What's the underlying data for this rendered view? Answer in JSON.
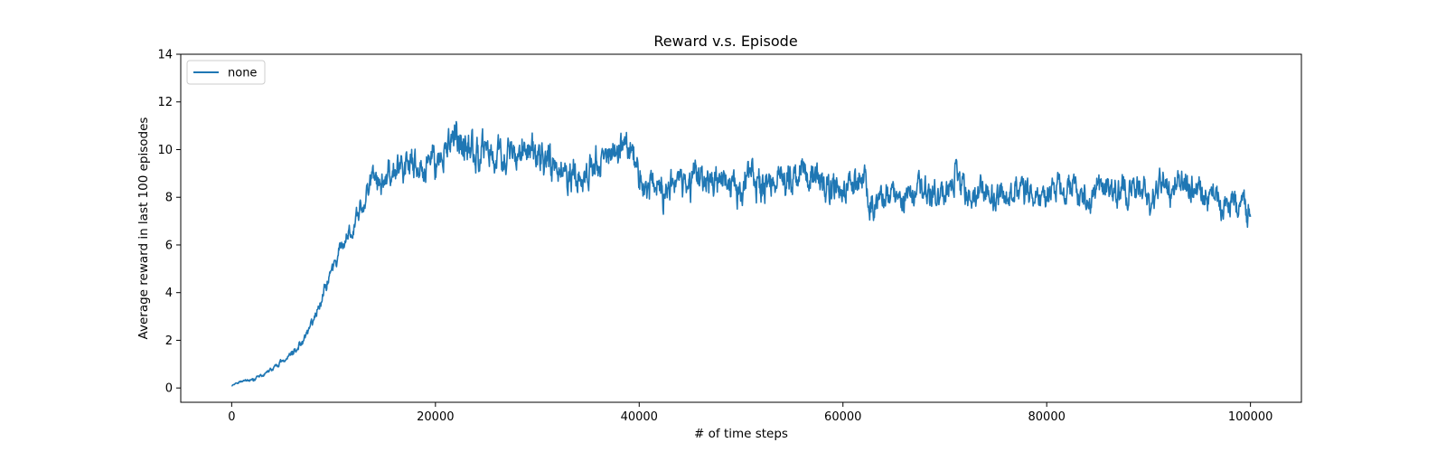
{
  "chart_data": {
    "type": "line",
    "title": "Reward v.s. Episode",
    "xlabel": "# of time steps",
    "ylabel": "Average reward in last 100 episodes",
    "xlim": [
      -5000,
      105000
    ],
    "ylim": [
      -0.6,
      14
    ],
    "xticks": [
      0,
      20000,
      40000,
      60000,
      80000,
      100000
    ],
    "xtick_labels": [
      "0",
      "20000",
      "40000",
      "60000",
      "80000",
      "100000"
    ],
    "yticks": [
      0,
      2,
      4,
      6,
      8,
      10,
      12,
      14
    ],
    "ytick_labels": [
      "0",
      "2",
      "4",
      "6",
      "8",
      "10",
      "12",
      "14"
    ],
    "grid": false,
    "legend": {
      "position": "top-left"
    },
    "series": [
      {
        "name": "none",
        "color": "#1f77b4",
        "x": [
          0,
          1000,
          2000,
          3000,
          4000,
          5000,
          6000,
          7000,
          8000,
          9000,
          10000,
          11000,
          12000,
          13000,
          14000,
          15000,
          16000,
          17000,
          18000,
          19000,
          20000,
          21000,
          22000,
          23000,
          24000,
          25000,
          26000,
          27000,
          28000,
          29000,
          30000,
          31000,
          32000,
          33000,
          34000,
          35000,
          36000,
          37000,
          38000,
          39000,
          40000,
          41000,
          42000,
          43000,
          44000,
          45000,
          46000,
          47000,
          48000,
          49000,
          50000,
          51000,
          52000,
          53000,
          54000,
          55000,
          56000,
          57000,
          58000,
          59000,
          60000,
          61000,
          62000,
          63000,
          64000,
          65000,
          66000,
          67000,
          68000,
          69000,
          70000,
          71000,
          72000,
          73000,
          74000,
          75000,
          76000,
          77000,
          78000,
          79000,
          80000,
          81000,
          82000,
          83000,
          84000,
          85000,
          86000,
          87000,
          88000,
          89000,
          90000,
          91000,
          92000,
          93000,
          94000,
          95000,
          96000,
          97000,
          98000,
          99000,
          100000
        ],
        "y": [
          0.1,
          0.3,
          0.35,
          0.5,
          0.8,
          1.1,
          1.5,
          2.0,
          2.8,
          4.0,
          5.2,
          6.2,
          7.0,
          7.9,
          8.5,
          8.8,
          9.0,
          9.0,
          9.3,
          9.5,
          9.8,
          10.2,
          10.3,
          10.2,
          10.0,
          9.9,
          10.0,
          9.8,
          10.0,
          10.1,
          9.9,
          9.6,
          9.2,
          9.0,
          8.8,
          8.9,
          9.2,
          9.8,
          10.4,
          10.0,
          9.0,
          8.6,
          8.4,
          8.2,
          8.5,
          8.7,
          8.6,
          8.8,
          8.5,
          8.3,
          8.6,
          8.9,
          8.8,
          8.5,
          8.6,
          8.4,
          8.7,
          8.8,
          8.6,
          8.5,
          8.4,
          8.7,
          8.3,
          8.0,
          7.9,
          8.0,
          7.8,
          8.1,
          8.3,
          8.5,
          8.4,
          8.6,
          8.3,
          8.1,
          8.2,
          8.0,
          8.3,
          8.4,
          8.2,
          8.0,
          8.1,
          8.3,
          8.4,
          8.1,
          8.0,
          8.2,
          8.3,
          8.5,
          8.2,
          8.4,
          8.3,
          8.5,
          8.4,
          8.6,
          8.5,
          8.4,
          8.2,
          7.9,
          7.7,
          7.6,
          7.3
        ],
        "noise_amplitude": [
          0.05,
          0.1,
          0.1,
          0.12,
          0.15,
          0.15,
          0.2,
          0.25,
          0.3,
          0.4,
          0.5,
          0.6,
          0.7,
          0.75,
          0.8,
          0.85,
          0.9,
          0.9,
          0.95,
          1.0,
          1.0,
          1.0,
          1.05,
          1.05,
          1.05,
          1.05,
          1.05,
          1.05,
          1.05,
          1.05,
          1.05,
          1.05,
          1.0,
          1.0,
          1.0,
          1.0,
          1.05,
          1.05,
          1.1,
          1.1,
          1.05,
          1.0,
          1.0,
          1.0,
          1.0,
          1.0,
          1.0,
          1.0,
          1.0,
          1.0,
          1.0,
          1.0,
          1.0,
          1.0,
          1.0,
          1.0,
          1.0,
          1.0,
          1.0,
          1.0,
          1.0,
          0.95,
          0.95,
          0.9,
          0.9,
          0.9,
          0.9,
          0.9,
          0.9,
          0.95,
          0.95,
          0.95,
          0.9,
          0.9,
          0.9,
          0.9,
          0.9,
          0.9,
          0.9,
          0.9,
          0.9,
          0.9,
          0.9,
          0.9,
          0.9,
          0.9,
          0.9,
          0.9,
          0.9,
          0.9,
          0.9,
          0.9,
          0.9,
          0.9,
          0.9,
          0.9,
          0.9,
          0.9,
          0.9,
          0.9,
          0.9
        ]
      }
    ]
  }
}
